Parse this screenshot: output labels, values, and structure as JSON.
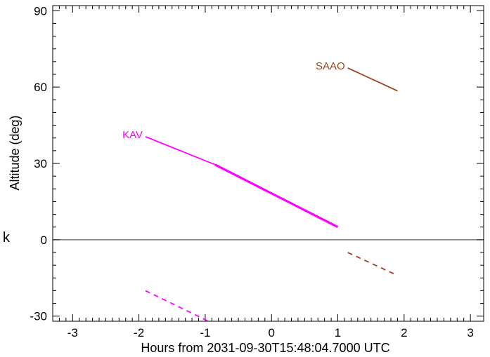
{
  "chart_data": {
    "type": "line",
    "title": "",
    "xlabel": "Hours from 2031-09-30T15:48:04.7000 UTC",
    "ylabel": "Altitude (deg)",
    "xlim": [
      -3.3,
      3.2
    ],
    "ylim": [
      -32,
      92
    ],
    "xticks": [
      -3,
      -2,
      -1,
      0,
      1,
      2,
      3
    ],
    "xtick_labels": [
      "-3",
      "-2",
      "-1",
      "0",
      "1",
      "2",
      "3"
    ],
    "yticks": [
      -30,
      0,
      30,
      60,
      90
    ],
    "ytick_labels": [
      "-30",
      "0",
      "30",
      "60",
      "90"
    ],
    "side_label": "k",
    "zero_line": true,
    "grid": false,
    "series": [
      {
        "name": "KAV",
        "color": "#ff00ff",
        "segments": [
          {
            "style": "solid",
            "weight": "normal",
            "x": [
              -1.9,
              -0.85
            ],
            "y": [
              40.5,
              29.5
            ]
          },
          {
            "style": "solid",
            "weight": "bold",
            "x": [
              -0.85,
              1.0
            ],
            "y": [
              29.5,
              5.0
            ]
          },
          {
            "style": "dashed",
            "weight": "normal",
            "x": [
              -1.9,
              -0.95
            ],
            "y": [
              -20,
              -32
            ]
          }
        ]
      },
      {
        "name": "SAAO",
        "color": "#a0401a",
        "segments": [
          {
            "style": "solid",
            "weight": "normal",
            "x": [
              1.15,
              1.9
            ],
            "y": [
              67.5,
              58.5
            ]
          },
          {
            "style": "dashed",
            "weight": "normal",
            "x": [
              1.15,
              1.9
            ],
            "y": [
              -5,
              -14
            ]
          }
        ]
      }
    ]
  }
}
